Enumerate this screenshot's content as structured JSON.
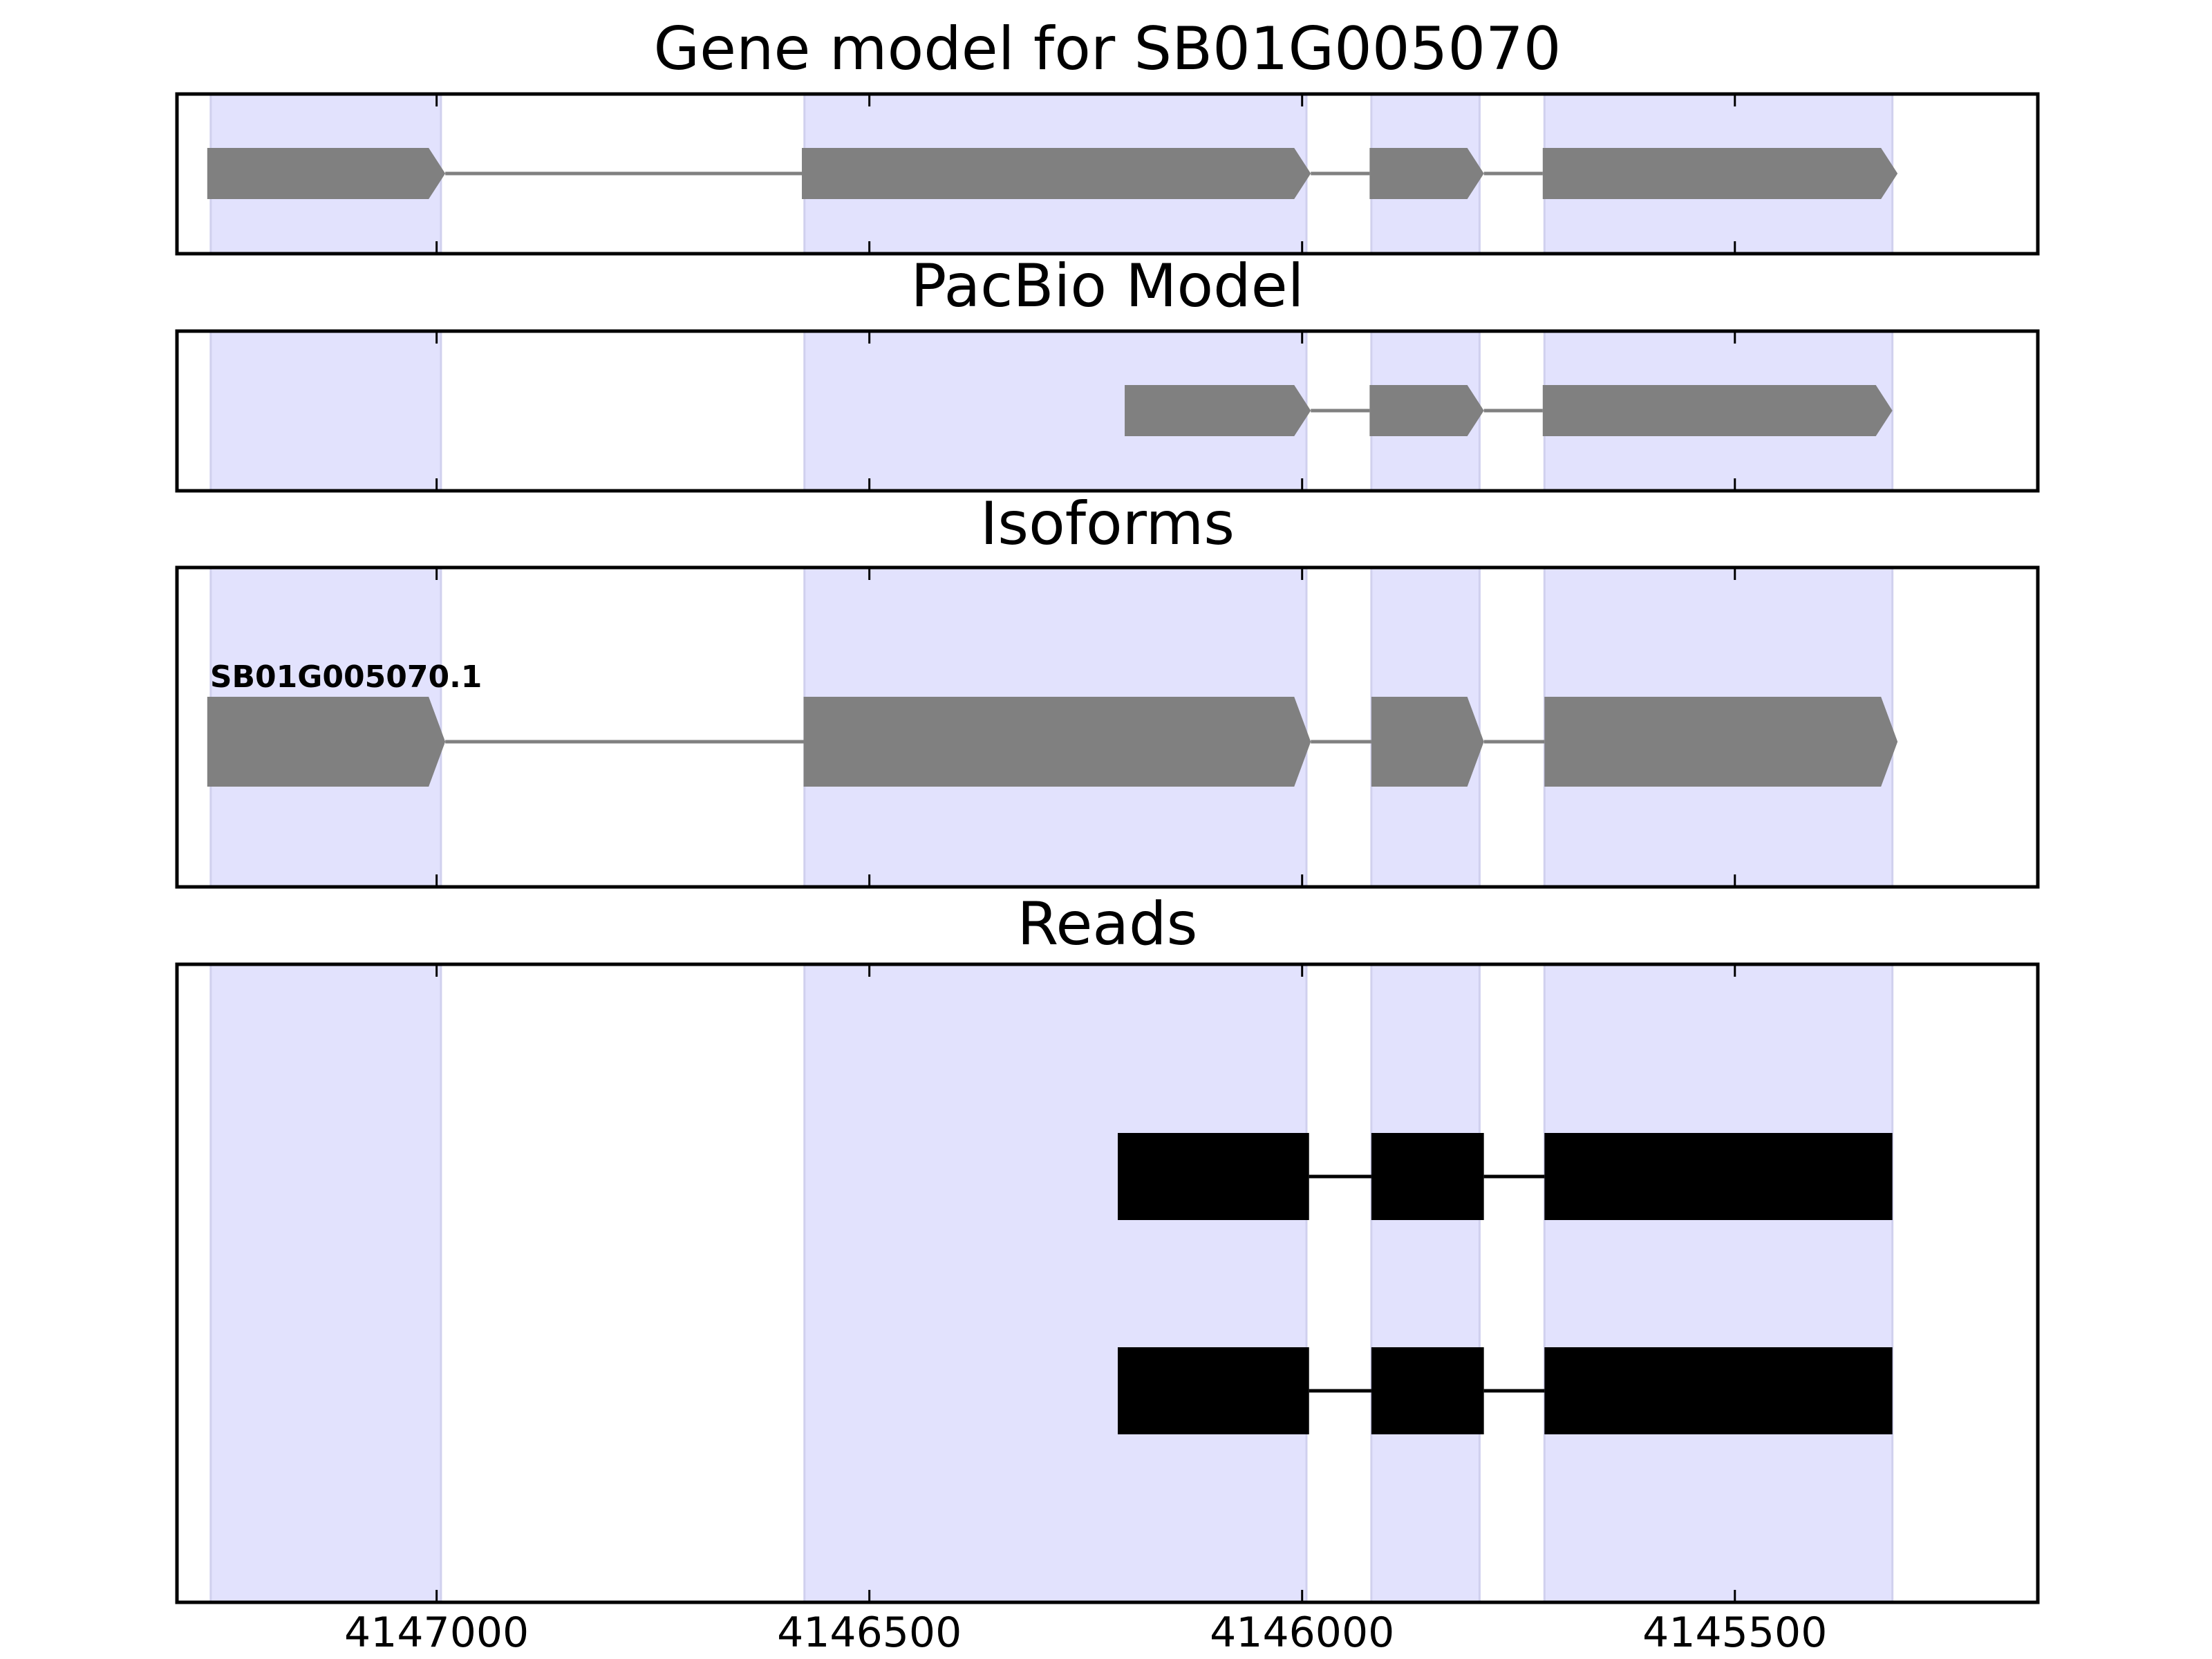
{
  "chart_data": {
    "type": "gene-structure",
    "title": "Gene model for SB01G005070",
    "xlim": [
      4147300,
      4145150
    ],
    "x_ticks": [
      4147000,
      4146500,
      4146000,
      4145500
    ],
    "x_tick_labels": [
      "4147000",
      "4146500",
      "4146000",
      "4145500"
    ],
    "strand": "-",
    "exon_shading_color": "#e2e2fd",
    "feature_color": "#808080",
    "read_color": "#000000",
    "exon_regions": [
      [
        4147261,
        4146995
      ],
      [
        4146575,
        4145995
      ],
      [
        4145920,
        4145795
      ],
      [
        4145720,
        4145318
      ]
    ],
    "panels": [
      {
        "id": "gene-model",
        "title": "Gene model for SB01G005070",
        "kind": "model",
        "features": [
          {
            "exons": [
              [
                4147265,
                4146990
              ],
              [
                4146578,
                4145990
              ],
              [
                4145922,
                4145790
              ],
              [
                4145722,
                4145312
              ]
            ]
          }
        ]
      },
      {
        "id": "pacbio-model",
        "title": "PacBio Model",
        "kind": "model",
        "features": [
          {
            "exons": [
              [
                4146205,
                4145990
              ],
              [
                4145922,
                4145790
              ],
              [
                4145722,
                4145318
              ]
            ]
          }
        ]
      },
      {
        "id": "isoforms",
        "title": "Isoforms",
        "kind": "model",
        "features": [
          {
            "label": "SB01G005070.1",
            "exons": [
              [
                4147265,
                4146990
              ],
              [
                4146576,
                4145990
              ],
              [
                4145920,
                4145790
              ],
              [
                4145720,
                4145312
              ]
            ]
          }
        ]
      },
      {
        "id": "reads",
        "title": "Reads",
        "kind": "reads",
        "features": [
          {
            "exons": [
              [
                4146213,
                4145992
              ],
              [
                4145920,
                4145790
              ],
              [
                4145720,
                4145318
              ]
            ]
          },
          {
            "exons": [
              [
                4146213,
                4145992
              ],
              [
                4145920,
                4145790
              ],
              [
                4145720,
                4145318
              ]
            ]
          }
        ]
      }
    ]
  }
}
